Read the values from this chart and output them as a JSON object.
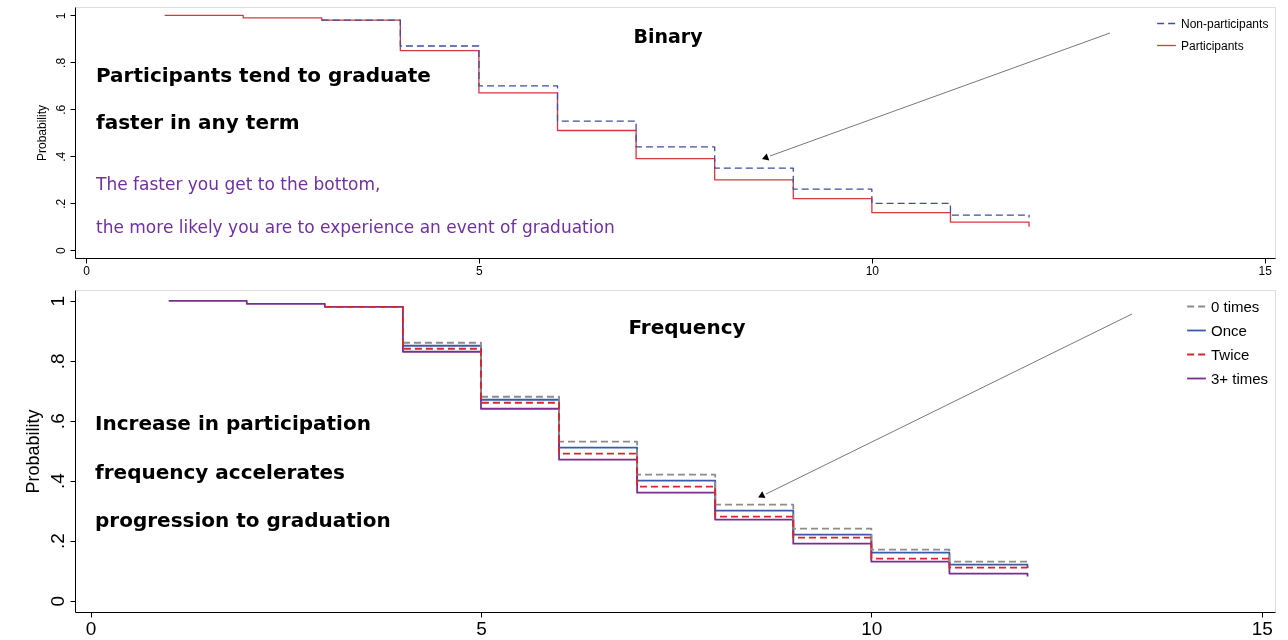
{
  "chart_data": [
    {
      "type": "step",
      "title": "Binary",
      "ylabel": "Probability",
      "x": [
        1,
        2,
        3,
        4,
        5,
        6,
        7,
        8,
        9,
        10,
        11,
        12
      ],
      "xlim": [
        -0.14,
        15.13
      ],
      "xticks": [
        {
          "value": 0,
          "label": "0"
        },
        5,
        10,
        15
      ],
      "ylim": [
        -0.033,
        1.036
      ],
      "yticks": [
        {
          "value": 0,
          "label": "0"
        },
        {
          "value": 0.2,
          "label": ".2"
        },
        {
          "value": 0.4,
          "label": ".4"
        },
        {
          "value": 0.6,
          "label": ".6"
        },
        {
          "value": 0.8,
          "label": ".8"
        },
        1
      ],
      "grid": false,
      "legend": "top right",
      "series": [
        {
          "name": "Non-participants",
          "color": "#3f4f9c",
          "line_style": "dashed",
          "values": [
            null,
            null,
            0.98,
            0.87,
            0.7,
            0.55,
            0.44,
            0.35,
            0.26,
            0.2,
            0.15,
            0.14
          ]
        },
        {
          "name": "Participants",
          "color": "#d7373f",
          "line_style": "solid",
          "values": [
            1.0,
            0.99,
            0.98,
            0.85,
            0.67,
            0.51,
            0.39,
            0.3,
            0.22,
            0.16,
            0.12,
            0.1
          ]
        }
      ],
      "annotations": [
        "Participants tend to graduate",
        "faster in any term",
        "The faster you get to the bottom,",
        "the more likely you are to experience an event of graduation"
      ]
    },
    {
      "type": "step",
      "title": "Frequency",
      "ylabel": "Probability",
      "x": [
        1,
        2,
        3,
        4,
        5,
        6,
        7,
        8,
        9,
        10,
        11,
        12
      ],
      "xlim": [
        -0.2,
        15.17
      ],
      "xticks": [
        {
          "value": 0,
          "label": "0"
        },
        5,
        10,
        15
      ],
      "ylim": [
        -0.038,
        1.036
      ],
      "yticks": [
        {
          "value": 0,
          "label": "0"
        },
        {
          "value": 0.2,
          "label": ".2"
        },
        {
          "value": 0.4,
          "label": ".4"
        },
        {
          "value": 0.6,
          "label": ".6"
        },
        {
          "value": 0.8,
          "label": ".8"
        },
        1
      ],
      "grid": false,
      "legend": "top right",
      "series": [
        {
          "name": "0 times",
          "color": "#8c8c8c",
          "line_style": "dashed",
          "values": [
            null,
            null,
            null,
            0.86,
            0.68,
            0.53,
            0.42,
            0.32,
            0.24,
            0.17,
            0.13,
            0.12
          ]
        },
        {
          "name": "Once",
          "color": "#3b5ba5",
          "line_style": "solid",
          "values": [
            null,
            null,
            null,
            0.85,
            0.67,
            0.51,
            0.4,
            0.3,
            0.22,
            0.16,
            0.12,
            0.11
          ]
        },
        {
          "name": "Twice",
          "color": "#d62728",
          "line_style": "dashed",
          "values": [
            null,
            null,
            0.98,
            0.84,
            0.66,
            0.49,
            0.38,
            0.28,
            0.21,
            0.14,
            0.11,
            0.1
          ]
        },
        {
          "name": "3+ times",
          "color": "#7b2d8e",
          "line_style": "solid",
          "values": [
            1.0,
            0.99,
            0.98,
            0.83,
            0.64,
            0.47,
            0.36,
            0.27,
            0.19,
            0.13,
            0.09,
            0.08
          ]
        }
      ],
      "annotations": [
        "Increase in participation",
        "frequency accelerates",
        "progression to graduation"
      ]
    }
  ]
}
